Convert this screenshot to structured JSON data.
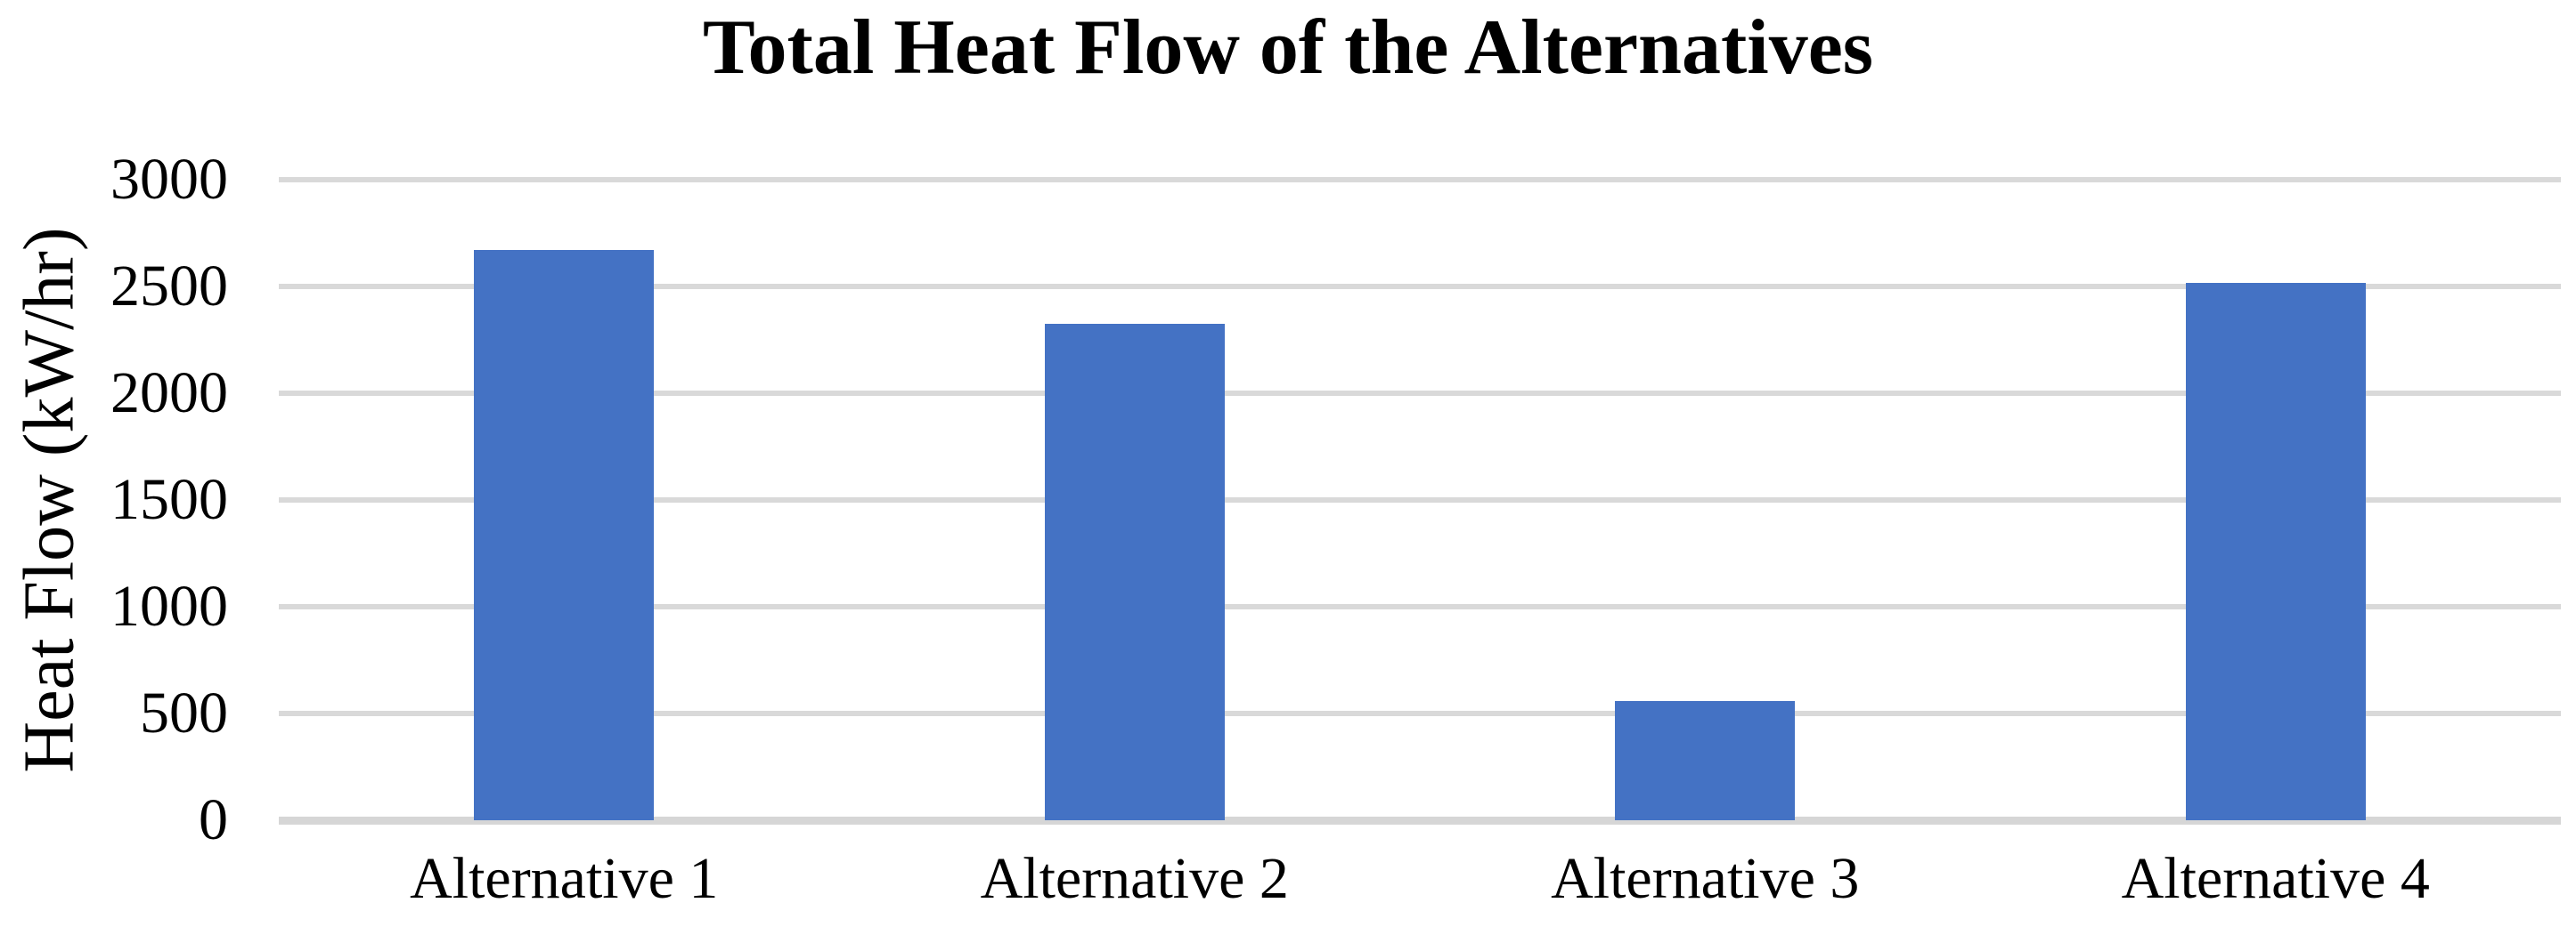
{
  "chart_data": {
    "type": "bar",
    "title": "Total Heat Flow of the Alternatives",
    "xlabel": "",
    "ylabel": "Heat Flow (kW/hr)",
    "categories": [
      "Alternative 1",
      "Alternative 2",
      "Alternative 3",
      "Alternative 4"
    ],
    "values": [
      2670,
      2325,
      557,
      2517
    ],
    "ylim": [
      0,
      3000
    ],
    "yticks": [
      0,
      500,
      1000,
      1500,
      2000,
      2500,
      3000
    ],
    "grid": "horizontal-only",
    "legend": "none",
    "colors": {
      "bar": "#4472C4",
      "gridline": "#D9D9D9",
      "axis_line": "#D6D6D6",
      "text": "#000000",
      "background": "#FFFFFF"
    }
  }
}
